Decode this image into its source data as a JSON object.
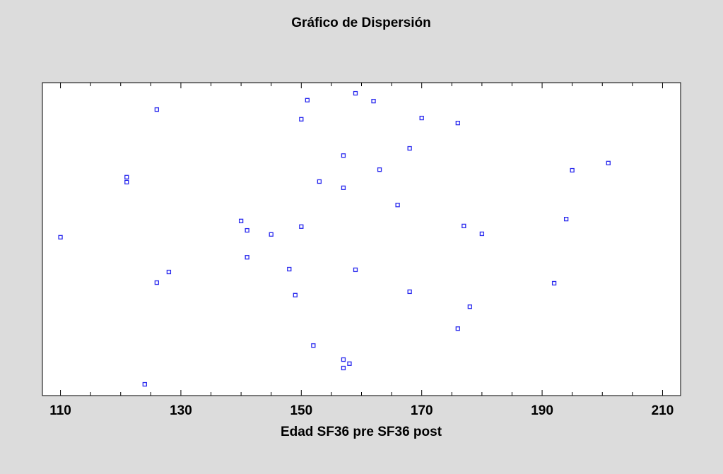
{
  "chart_data": {
    "type": "scatter",
    "title": "Gráfico de Dispersión",
    "x_label": "Edad SF36 pre SF36 post",
    "x": [
      110,
      121,
      121,
      126,
      126,
      124,
      128,
      140,
      141,
      141,
      145,
      148,
      149,
      150,
      150,
      151,
      152,
      153,
      157,
      157,
      157,
      157,
      158,
      159,
      159,
      162,
      163,
      166,
      168,
      168,
      170,
      176,
      176,
      177,
      178,
      180,
      192,
      194,
      195,
      201
    ],
    "y": [
      50.6,
      69.8,
      68.2,
      91.4,
      36.1,
      3.6,
      39.5,
      55.8,
      52.8,
      44.2,
      51.5,
      40.4,
      32.1,
      88.3,
      54,
      94.4,
      16,
      68.4,
      76.7,
      66.4,
      11.5,
      8.8,
      10.2,
      96.6,
      40.2,
      94.1,
      72.2,
      60.9,
      79,
      33.2,
      88.7,
      87.1,
      21.4,
      54.2,
      28.4,
      51.7,
      35.9,
      56.4,
      72,
      74.3
    ],
    "color": "#2a2aee",
    "xlim": [
      107,
      213
    ],
    "ylim": [
      0,
      100
    ],
    "xticks": [
      110,
      130,
      150,
      170,
      190,
      210
    ],
    "xminorticks": [
      115,
      120,
      125,
      135,
      140,
      145,
      155,
      160,
      165,
      175,
      180,
      185,
      195,
      200,
      205
    ]
  }
}
